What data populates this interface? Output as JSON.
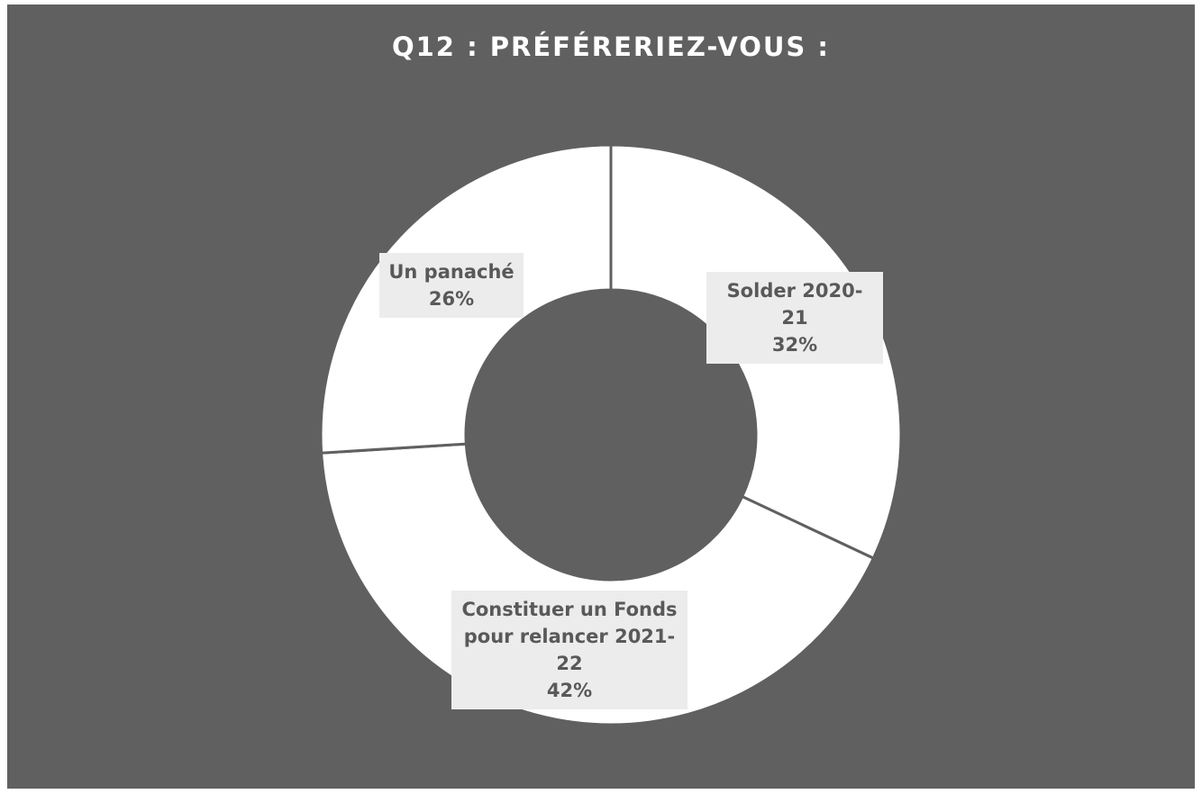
{
  "chart_data": {
    "type": "donut",
    "title": "Q12 : PRÉFÉRERIEZ-VOUS :",
    "categories": [
      "Solder 2020-21",
      "Constituer un Fonds pour relancer 2021-22",
      "Un panaché"
    ],
    "values": [
      32,
      42,
      26
    ],
    "value_labels": [
      "32%",
      "42%",
      "26%"
    ],
    "color": "#ffffff"
  }
}
